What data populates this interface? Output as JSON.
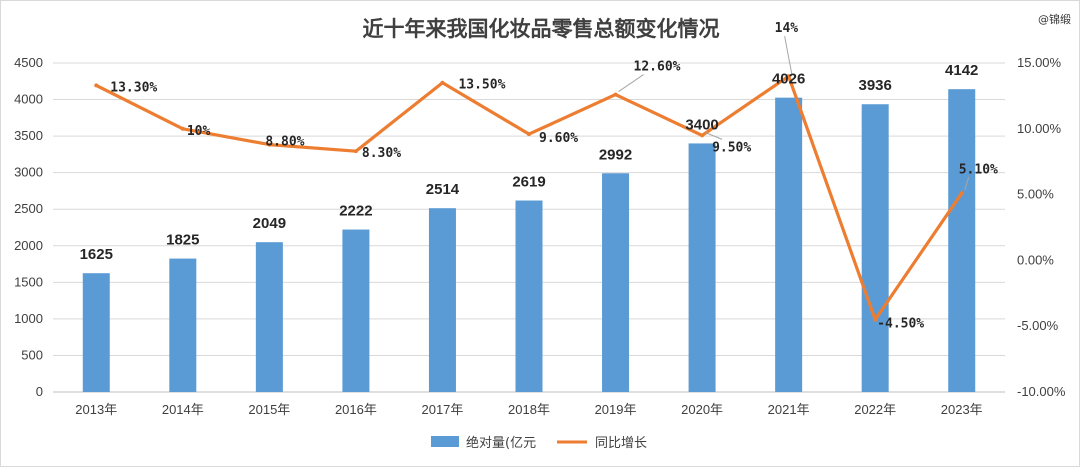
{
  "watermark": "@锦缎",
  "colors": {
    "bar": "#5b9bd5",
    "line": "#ed7d31",
    "grid": "#d9d9d9",
    "axis": "#bfbfbf",
    "text": "#404040"
  },
  "chart_data": {
    "type": "bar",
    "title": "近十年来我国化妆品零售总额变化情况",
    "categories": [
      "2013年",
      "2014年",
      "2015年",
      "2016年",
      "2017年",
      "2018年",
      "2019年",
      "2020年",
      "2021年",
      "2022年",
      "2023年"
    ],
    "series": [
      {
        "name": "绝对量(亿元",
        "type": "bar",
        "axis": "left",
        "values": [
          1625,
          1825,
          2049,
          2222,
          2514,
          2619,
          2992,
          3400,
          4026,
          3936,
          4142
        ],
        "labels": [
          "1625",
          "1825",
          "2049",
          "2222",
          "2514",
          "2619",
          "2992",
          "3400",
          "4026",
          "3936",
          "4142"
        ]
      },
      {
        "name": "同比增长",
        "type": "line",
        "axis": "right",
        "values": [
          13.3,
          10,
          8.8,
          8.3,
          13.5,
          9.6,
          12.6,
          9.5,
          14,
          -4.5,
          5.1
        ],
        "labels": [
          "13.30%",
          "10%",
          "8.80%",
          "8.30%",
          "13.50%",
          "9.60%",
          "12.60%",
          "9.50%",
          "14%",
          "-4.50%",
          "5.10%"
        ]
      }
    ],
    "y_left": {
      "ylim": [
        0,
        4500
      ],
      "ticks": [
        "0",
        "500",
        "1000",
        "1500",
        "2000",
        "2500",
        "3000",
        "3500",
        "4000",
        "4500"
      ]
    },
    "y_right": {
      "ylim": [
        -10,
        15
      ],
      "ticks": [
        "-10.00%",
        "-5.00%",
        "0.00%",
        "5.00%",
        "10.00%",
        "15.00%"
      ]
    },
    "grid": true,
    "legend": "bottom"
  }
}
